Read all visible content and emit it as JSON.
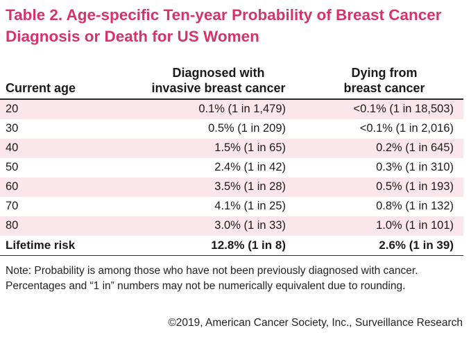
{
  "title": "Table 2. Age-specific Ten-year Probability of Breast Cancer Diagnosis or Death for US Women",
  "table": {
    "headers": {
      "age": "Current age",
      "diagnosed_line1": "Diagnosed with",
      "diagnosed_line2": "invasive breast cancer",
      "dying_line1": "Dying from",
      "dying_line2": "breast cancer"
    },
    "rows": [
      {
        "age": "20",
        "diagnosed": "0.1% (1 in 1,479)",
        "dying": "<0.1% (1 in 18,503)"
      },
      {
        "age": "30",
        "diagnosed": "0.5% (1 in 209)",
        "dying": "<0.1% (1 in 2,016)"
      },
      {
        "age": "40",
        "diagnosed": "1.5% (1 in 65)",
        "dying": "0.2% (1 in 645)"
      },
      {
        "age": "50",
        "diagnosed": "2.4% (1 in 42)",
        "dying": "0.3% (1 in 310)"
      },
      {
        "age": "60",
        "diagnosed": "3.5% (1 in 28)",
        "dying": "0.5% (1 in 193)"
      },
      {
        "age": "70",
        "diagnosed": "4.1% (1 in 25)",
        "dying": "0.8% (1 in 132)"
      },
      {
        "age": "80",
        "diagnosed": "3.0% (1 in 33)",
        "dying": "1.0% (1 in 101)"
      }
    ],
    "lifetime": {
      "age": "Lifetime risk",
      "diagnosed": "12.8% (1 in 8)",
      "dying": "2.6% (1 in 39)"
    }
  },
  "note": "Note: Probability is among those who have not been previously diagnosed with cancer. Percentages and “1 in” numbers may not be numerically equivalent due to rounding.",
  "credit": "©2019, American Cancer Society, Inc., Surveillance Research",
  "colors": {
    "title": "#d6336c",
    "row_shade": "#fbe6ec"
  }
}
